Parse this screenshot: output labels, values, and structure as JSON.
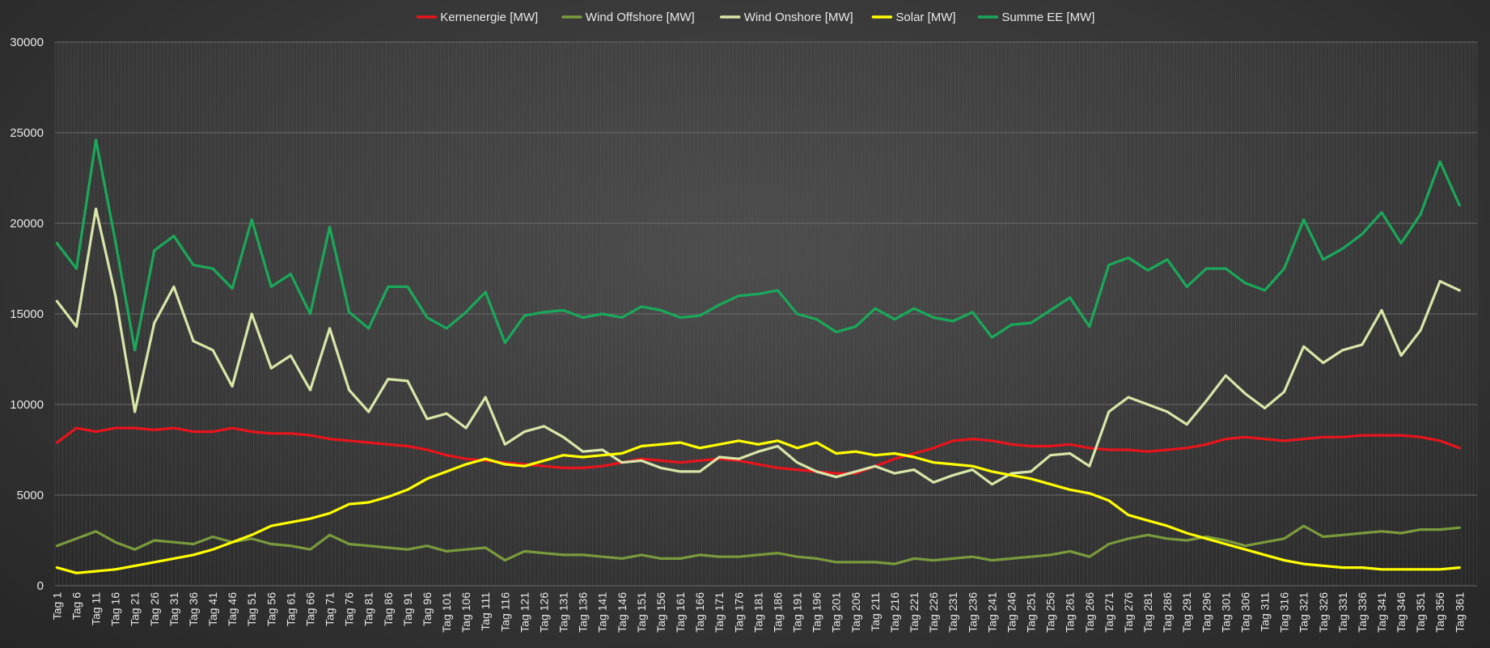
{
  "chart_data": {
    "type": "line",
    "title": "",
    "xlabel": "",
    "ylabel": "",
    "ylim": [
      0,
      30000
    ],
    "yticks": [
      0,
      5000,
      10000,
      15000,
      20000,
      25000,
      30000
    ],
    "grid": "on (vertical per-day gridlines, horizontal major gridlines)",
    "legend_position": "top",
    "x_categories_pattern": "Tag 1 … Tag 365 (daily)",
    "x_tick_labels": [
      "Tag 1",
      "Tag 6",
      "Tag 11",
      "Tag 16",
      "Tag 21",
      "Tag 26",
      "Tag 31",
      "Tag 36",
      "Tag 41",
      "Tag 46",
      "Tag 51",
      "Tag 56",
      "Tag 61",
      "Tag 66",
      "Tag 71",
      "Tag 76",
      "Tag 81",
      "Tag 86",
      "Tag 91",
      "Tag 96",
      "Tag 101",
      "Tag 106",
      "Tag 111",
      "Tag 116",
      "Tag 121",
      "Tag 126",
      "Tag 131",
      "Tag 136",
      "Tag 141",
      "Tag 146",
      "Tag 151",
      "Tag 156",
      "Tag 161",
      "Tag 166",
      "Tag 171",
      "Tag 176",
      "Tag 181",
      "Tag 186",
      "Tag 191",
      "Tag 196",
      "Tag 201",
      "Tag 206",
      "Tag 211",
      "Tag 216",
      "Tag 221",
      "Tag 226",
      "Tag 231",
      "Tag 236",
      "Tag 241",
      "Tag 246",
      "Tag 251",
      "Tag 256",
      "Tag 261",
      "Tag 266",
      "Tag 271",
      "Tag 276",
      "Tag 281",
      "Tag 286",
      "Tag 291",
      "Tag 296",
      "Tag 301",
      "Tag 306",
      "Tag 311",
      "Tag 316",
      "Tag 321",
      "Tag 326",
      "Tag 331",
      "Tag 336",
      "Tag 341",
      "Tag 346",
      "Tag 351",
      "Tag 356",
      "Tag 361"
    ],
    "series_note": "values approximated at the labelled ticks (every 5th day), read from gridlines",
    "series": [
      {
        "name": "Kernenergie [MW]",
        "color": "#e8141c",
        "values": [
          7900,
          8700,
          8500,
          8700,
          8700,
          8600,
          8700,
          8500,
          8500,
          8700,
          8500,
          8400,
          8400,
          8300,
          8100,
          8000,
          7900,
          7800,
          7700,
          7500,
          7200,
          7000,
          6900,
          6800,
          6700,
          6600,
          6500,
          6500,
          6600,
          6800,
          7000,
          6900,
          6800,
          6900,
          7000,
          6900,
          6700,
          6500,
          6400,
          6300,
          6200,
          6200,
          6600,
          7000,
          7300,
          7600,
          8000,
          8100,
          8000,
          7800,
          7700,
          7700,
          7800,
          7600,
          7500,
          7500,
          7400,
          7500,
          7600,
          7800,
          8100,
          8200,
          8100,
          8000,
          8100,
          8200,
          8200,
          8300,
          8300,
          8300,
          8200,
          8000,
          7600
        ]
      },
      {
        "name": "Wind Offshore [MW]",
        "color": "#7a9a3c",
        "values": [
          2200,
          2600,
          3000,
          2400,
          2000,
          2500,
          2400,
          2300,
          2700,
          2400,
          2600,
          2300,
          2200,
          2000,
          2800,
          2300,
          2200,
          2100,
          2000,
          2200,
          1900,
          2000,
          2100,
          1400,
          1900,
          1800,
          1700,
          1700,
          1600,
          1500,
          1700,
          1500,
          1500,
          1700,
          1600,
          1600,
          1700,
          1800,
          1600,
          1500,
          1300,
          1300,
          1300,
          1200,
          1500,
          1400,
          1500,
          1600,
          1400,
          1500,
          1600,
          1700,
          1900,
          1600,
          2300,
          2600,
          2800,
          2600,
          2500,
          2700,
          2500,
          2200,
          2400,
          2600,
          3300,
          2700,
          2800,
          2900,
          3000,
          2900,
          3100,
          3100,
          3200
        ]
      },
      {
        "name": "Wind Onshore [MW]",
        "color": "#d8e6a8",
        "values": [
          15700,
          14300,
          20800,
          16000,
          9600,
          14500,
          16500,
          13500,
          13000,
          11000,
          15000,
          12000,
          12700,
          10800,
          14200,
          10800,
          9600,
          11400,
          11300,
          9200,
          9500,
          8700,
          10400,
          7800,
          8500,
          8800,
          8200,
          7400,
          7500,
          6800,
          6900,
          6500,
          6300,
          6300,
          7100,
          7000,
          7400,
          7700,
          6800,
          6300,
          6000,
          6300,
          6600,
          6200,
          6400,
          5700,
          6100,
          6400,
          5600,
          6200,
          6300,
          7200,
          7300,
          6600,
          9600,
          10400,
          10000,
          9600,
          8900,
          10200,
          11600,
          10600,
          9800,
          10700,
          13200,
          12300,
          13000,
          13300,
          15200,
          12700,
          14100,
          16800,
          16300
        ]
      },
      {
        "name": "Solar [MW]",
        "color": "#ffff00",
        "values": [
          1000,
          700,
          800,
          900,
          1100,
          1300,
          1500,
          1700,
          2000,
          2400,
          2800,
          3300,
          3500,
          3700,
          4000,
          4500,
          4600,
          4900,
          5300,
          5900,
          6300,
          6700,
          7000,
          6700,
          6600,
          6900,
          7200,
          7100,
          7200,
          7300,
          7700,
          7800,
          7900,
          7600,
          7800,
          8000,
          7800,
          8000,
          7600,
          7900,
          7300,
          7400,
          7200,
          7300,
          7100,
          6800,
          6700,
          6600,
          6300,
          6100,
          5900,
          5600,
          5300,
          5100,
          4700,
          3900,
          3600,
          3300,
          2900,
          2600,
          2300,
          2000,
          1700,
          1400,
          1200,
          1100,
          1000,
          1000,
          900,
          900,
          900,
          900,
          1000
        ]
      },
      {
        "name": "Summe EE [MW]",
        "color": "#1aa85a",
        "values": [
          18900,
          17500,
          24600,
          19000,
          13000,
          18500,
          19300,
          17700,
          17500,
          16400,
          20200,
          16500,
          17200,
          15000,
          19800,
          15100,
          14200,
          16500,
          16500,
          14800,
          14200,
          15100,
          16200,
          13400,
          14900,
          15100,
          15200,
          14800,
          15000,
          14800,
          15400,
          15200,
          14800,
          14900,
          15500,
          16000,
          16100,
          16300,
          15000,
          14700,
          14000,
          14300,
          15300,
          14700,
          15300,
          14800,
          14600,
          15100,
          13700,
          14400,
          14500,
          15200,
          15900,
          14300,
          17700,
          18100,
          17400,
          18000,
          16500,
          17500,
          17500,
          16700,
          16300,
          17500,
          20200,
          18000,
          18600,
          19400,
          20600,
          18900,
          20500,
          23400,
          21000
        ]
      }
    ]
  }
}
